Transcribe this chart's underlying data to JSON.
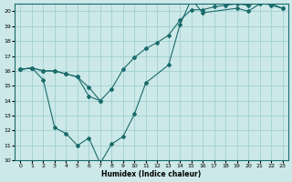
{
  "xlabel": "Humidex (Indice chaleur)",
  "bg_color": "#cce8e8",
  "grid_color": "#99cccc",
  "line_color": "#1a6b6b",
  "xlim": [
    -0.5,
    23.5
  ],
  "ylim": [
    10,
    20.5
  ],
  "xticks": [
    0,
    1,
    2,
    3,
    4,
    5,
    6,
    7,
    8,
    9,
    10,
    11,
    12,
    13,
    14,
    15,
    16,
    17,
    18,
    19,
    20,
    21,
    22,
    23
  ],
  "yticks": [
    10,
    11,
    12,
    13,
    14,
    15,
    16,
    17,
    18,
    19,
    20
  ],
  "line1_x": [
    0,
    1,
    2,
    3,
    4,
    5,
    6,
    7,
    8,
    9,
    10,
    11,
    13,
    14,
    15,
    16,
    19,
    20,
    21,
    22,
    23
  ],
  "line1_y": [
    16.1,
    16.2,
    15.4,
    12.2,
    11.8,
    11.0,
    11.5,
    9.8,
    11.1,
    11.6,
    13.1,
    15.2,
    16.4,
    19.1,
    20.8,
    19.9,
    20.2,
    20.0,
    20.5,
    20.5,
    20.2
  ],
  "line2_x": [
    0,
    1,
    2,
    3,
    4,
    5,
    6,
    7
  ],
  "line2_y": [
    16.1,
    16.2,
    16.0,
    16.0,
    15.8,
    15.6,
    14.3,
    14.0
  ],
  "line3_x": [
    0,
    1,
    2,
    3,
    4,
    5,
    6,
    7,
    8,
    9,
    10,
    11,
    12,
    13,
    14,
    15,
    16,
    17,
    18,
    19,
    20,
    21,
    22,
    23
  ],
  "line3_y": [
    16.1,
    16.2,
    16.0,
    16.0,
    15.8,
    15.6,
    14.9,
    14.0,
    14.8,
    16.1,
    16.9,
    17.5,
    17.9,
    18.4,
    19.4,
    20.1,
    20.1,
    20.3,
    20.4,
    20.5,
    20.4,
    20.6,
    20.4,
    20.2
  ]
}
